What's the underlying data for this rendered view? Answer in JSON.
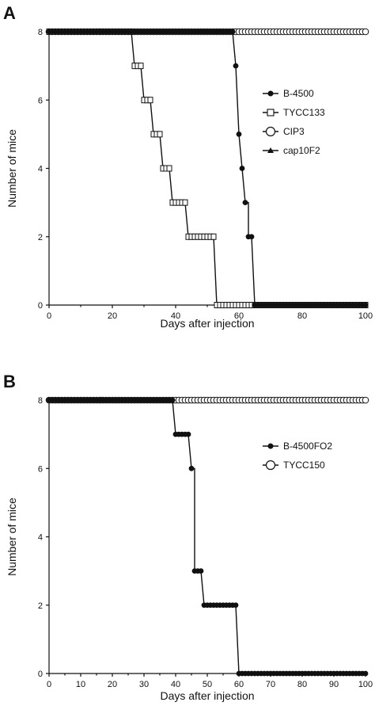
{
  "chart_data": [
    {
      "panel_label": "A",
      "type": "line",
      "xlabel": "Days after injection",
      "ylabel": "Number of mice",
      "xlim": [
        0,
        100
      ],
      "ylim": [
        0,
        8
      ],
      "xticks": [
        0,
        20,
        40,
        60,
        80,
        100
      ],
      "yticks": [
        0,
        2,
        4,
        6,
        8
      ],
      "legend_position": "right",
      "series": [
        {
          "name": "B-4500",
          "marker": "filled-circle",
          "points": [
            [
              0,
              8
            ],
            [
              58,
              8
            ],
            [
              59,
              7
            ],
            [
              60,
              5
            ],
            [
              61,
              4
            ],
            [
              62,
              3
            ],
            [
              63,
              3
            ],
            [
              63,
              2
            ],
            [
              64,
              2
            ],
            [
              65,
              0
            ],
            [
              100,
              0
            ]
          ]
        },
        {
          "name": "TYCC133",
          "marker": "open-square",
          "points": [
            [
              0,
              8
            ],
            [
              26,
              8
            ],
            [
              27,
              7
            ],
            [
              29,
              7
            ],
            [
              30,
              6
            ],
            [
              32,
              6
            ],
            [
              33,
              5
            ],
            [
              35,
              5
            ],
            [
              36,
              4
            ],
            [
              38,
              4
            ],
            [
              39,
              3
            ],
            [
              43,
              3
            ],
            [
              44,
              2
            ],
            [
              52,
              2
            ],
            [
              53,
              0
            ],
            [
              100,
              0
            ]
          ]
        },
        {
          "name": "CIP3",
          "marker": "open-circle",
          "points": [
            [
              0,
              8
            ],
            [
              100,
              8
            ]
          ]
        },
        {
          "name": "cap10F2",
          "marker": "filled-triangle",
          "points": [
            [
              0,
              8
            ],
            [
              100,
              8
            ]
          ]
        }
      ]
    },
    {
      "panel_label": "B",
      "type": "line",
      "xlabel": "Days after injection",
      "ylabel": "Number of mice",
      "xlim": [
        0,
        100
      ],
      "ylim": [
        0,
        8
      ],
      "xticks": [
        0,
        10,
        20,
        30,
        40,
        50,
        60,
        70,
        80,
        90,
        100
      ],
      "yticks": [
        0,
        2,
        4,
        6,
        8
      ],
      "legend_position": "right",
      "series": [
        {
          "name": "B-4500FO2",
          "marker": "filled-circle",
          "points": [
            [
              0,
              8
            ],
            [
              39,
              8
            ],
            [
              40,
              7
            ],
            [
              44,
              7
            ],
            [
              45,
              6
            ],
            [
              46,
              6
            ],
            [
              46,
              3
            ],
            [
              48,
              3
            ],
            [
              49,
              2
            ],
            [
              59,
              2
            ],
            [
              60,
              0
            ],
            [
              100,
              0
            ]
          ]
        },
        {
          "name": "TYCC150",
          "marker": "open-circle",
          "points": [
            [
              0,
              8
            ],
            [
              100,
              8
            ]
          ]
        }
      ]
    }
  ]
}
